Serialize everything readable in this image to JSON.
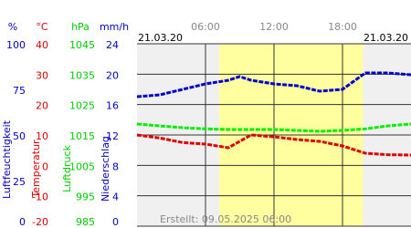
{
  "chart_data": {
    "type": "line",
    "start_date": "21.03.20",
    "end_date": "21.03.20",
    "created": "Erstellt: 09.05.2025 06:00",
    "xlim": [
      0,
      24
    ],
    "xticks": [
      {
        "value": 6,
        "label": "06:00"
      },
      {
        "value": 12,
        "label": "12:00"
      },
      {
        "value": 18,
        "label": "18:00"
      }
    ],
    "daylight": [
      7.2,
      19.8
    ],
    "x": [
      0,
      2,
      4,
      6,
      8,
      9,
      10,
      12,
      14,
      16,
      18,
      20,
      22,
      24
    ],
    "axes": [
      {
        "unit": "%",
        "title": "Luftfeuchtigkeit",
        "color": "#0000cc",
        "lim": [
          0,
          100
        ],
        "ticks": [
          100,
          75,
          50,
          25,
          0
        ]
      },
      {
        "unit": "°C",
        "title": "Temperatur",
        "color": "#dd0000",
        "lim": [
          -20,
          40
        ],
        "ticks": [
          40,
          30,
          20,
          10,
          0,
          -10,
          -20
        ]
      },
      {
        "unit": "hPa",
        "title": "Luftdruck",
        "color": "#00cc00",
        "lim": [
          985,
          1045
        ],
        "ticks": [
          1045,
          1035,
          1025,
          1015,
          1005,
          995,
          985
        ]
      },
      {
        "unit": "mm/h",
        "title": "Niederschlag",
        "color": "#0000cc",
        "lim": [
          0,
          24
        ],
        "ticks": [
          24,
          20,
          16,
          12,
          8,
          4,
          0
        ]
      }
    ],
    "series": [
      {
        "axis": 0,
        "color": "#0000cc",
        "values": [
          71,
          72,
          75,
          78,
          80,
          82,
          80,
          78,
          77,
          74,
          75,
          84,
          84,
          83
        ]
      },
      {
        "axis": 1,
        "color": "#dd0000",
        "values": [
          10,
          9,
          7.5,
          7,
          5.8,
          7.9,
          10,
          9.4,
          8.5,
          7.9,
          6.4,
          4,
          3.5,
          3.4
        ]
      },
      {
        "axis": 2,
        "color": "#00ee00",
        "values": [
          1018.6,
          1018,
          1017.4,
          1017,
          1016.8,
          1016.8,
          1016.8,
          1016.8,
          1016.5,
          1016.2,
          1016.5,
          1017,
          1018,
          1018.6
        ]
      }
    ]
  }
}
